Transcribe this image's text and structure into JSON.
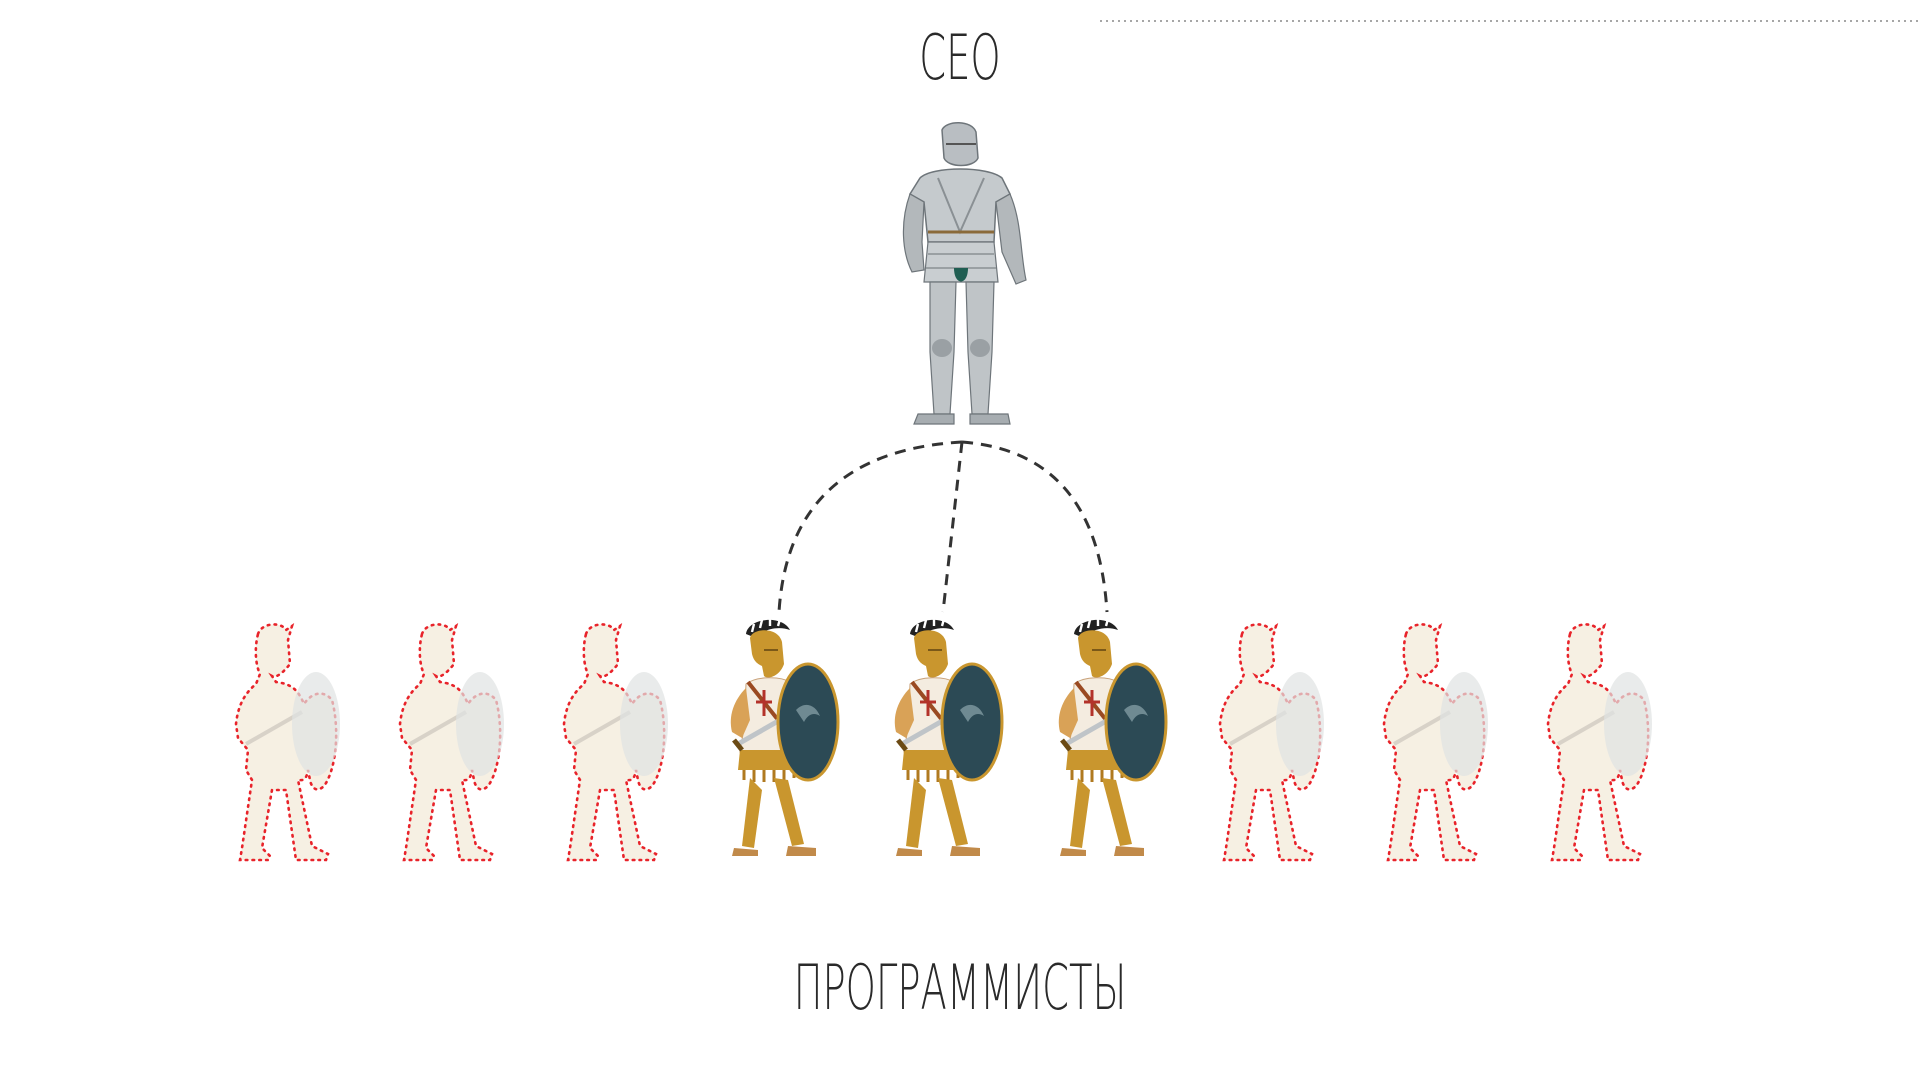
{
  "diagram": {
    "ceo_label": "CEO",
    "team_label": "ПРОГРАММИСТЫ",
    "programmers": [
      {
        "state": "vacant"
      },
      {
        "state": "vacant"
      },
      {
        "state": "vacant"
      },
      {
        "state": "hired"
      },
      {
        "state": "hired"
      },
      {
        "state": "hired"
      },
      {
        "state": "vacant"
      },
      {
        "state": "vacant"
      },
      {
        "state": "vacant"
      }
    ],
    "connectors": [
      {
        "from": "ceo",
        "to": 3
      },
      {
        "from": "ceo",
        "to": 4
      },
      {
        "from": "ceo",
        "to": 5
      }
    ],
    "colors": {
      "vacant_outline": "#e8232a",
      "connector": "#333333",
      "bronze": "#c9962e",
      "shield": "#2c4a55",
      "armor": "#b9bec2",
      "top_rule": "#888888"
    }
  }
}
